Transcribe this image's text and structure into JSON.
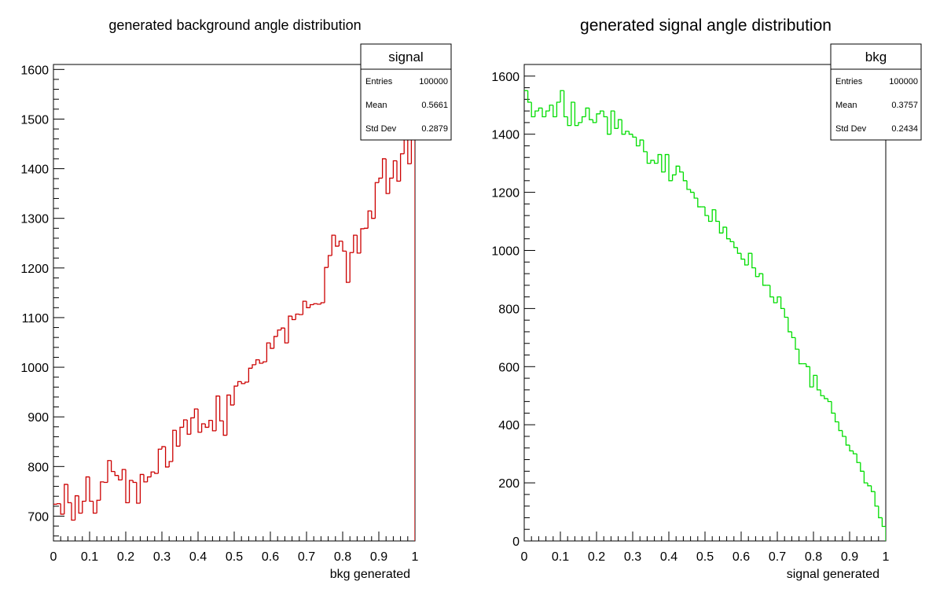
{
  "chart_data": [
    {
      "type": "histogram",
      "title": "generated background angle distribution",
      "xlabel": "bkg generated",
      "ylabel": "",
      "xlim": [
        0,
        1
      ],
      "ylim": [
        650,
        1610
      ],
      "color": "#cc0000",
      "bin_width": 0.01,
      "x_ticks": [
        "0",
        "0.1",
        "0.2",
        "0.3",
        "0.4",
        "0.5",
        "0.6",
        "0.7",
        "0.8",
        "0.9",
        "1"
      ],
      "y_ticks": [
        700,
        800,
        900,
        1000,
        1100,
        1200,
        1300,
        1400,
        1500,
        1600
      ],
      "stats": {
        "name": "signal",
        "rows": [
          {
            "label": "Entries",
            "value": "100000"
          },
          {
            "label": "Mean",
            "value": "0.5661"
          },
          {
            "label": "Std Dev",
            "value": "0.2879"
          }
        ]
      },
      "values": [
        724,
        725,
        704,
        764,
        727,
        692,
        741,
        706,
        730,
        779,
        730,
        706,
        732,
        769,
        768,
        812,
        790,
        782,
        773,
        794,
        727,
        772,
        768,
        726,
        784,
        769,
        779,
        789,
        786,
        835,
        840,
        799,
        810,
        873,
        841,
        879,
        894,
        865,
        898,
        916,
        869,
        886,
        879,
        893,
        872,
        942,
        892,
        863,
        944,
        924,
        962,
        971,
        967,
        970,
        998,
        1005,
        1015,
        1008,
        1011,
        1049,
        1038,
        1062,
        1075,
        1079,
        1049,
        1103,
        1096,
        1107,
        1106,
        1133,
        1120,
        1126,
        1128,
        1127,
        1130,
        1201,
        1225,
        1266,
        1244,
        1254,
        1234,
        1171,
        1231,
        1266,
        1230,
        1279,
        1280,
        1315,
        1300,
        1372,
        1381,
        1420,
        1350,
        1381,
        1416,
        1375,
        1430,
        1460,
        1410,
        1460
      ]
    },
    {
      "type": "histogram",
      "title": "generated signal angle distribution",
      "xlabel": "signal generated",
      "ylabel": "",
      "xlim": [
        0,
        1
      ],
      "ylim": [
        0,
        1640
      ],
      "color": "#00dd00",
      "bin_width": 0.01,
      "x_ticks": [
        "0",
        "0.1",
        "0.2",
        "0.3",
        "0.4",
        "0.5",
        "0.6",
        "0.7",
        "0.8",
        "0.9",
        "1"
      ],
      "y_ticks": [
        0,
        200,
        400,
        600,
        800,
        1000,
        1200,
        1400,
        1600
      ],
      "stats": {
        "name": "bkg",
        "rows": [
          {
            "label": "Entries",
            "value": "100000"
          },
          {
            "label": "Mean",
            "value": "0.3757"
          },
          {
            "label": "Std Dev",
            "value": "0.2434"
          }
        ]
      },
      "values": [
        1550,
        1510,
        1460,
        1480,
        1490,
        1460,
        1480,
        1500,
        1460,
        1510,
        1550,
        1460,
        1430,
        1510,
        1430,
        1440,
        1460,
        1490,
        1450,
        1440,
        1470,
        1480,
        1460,
        1400,
        1480,
        1420,
        1450,
        1400,
        1410,
        1400,
        1390,
        1360,
        1380,
        1340,
        1300,
        1310,
        1300,
        1330,
        1270,
        1330,
        1240,
        1260,
        1290,
        1270,
        1240,
        1210,
        1200,
        1180,
        1150,
        1150,
        1120,
        1100,
        1140,
        1100,
        1060,
        1080,
        1040,
        1030,
        1010,
        990,
        970,
        950,
        990,
        940,
        910,
        920,
        880,
        880,
        840,
        820,
        840,
        800,
        770,
        720,
        700,
        660,
        610,
        610,
        600,
        530,
        570,
        520,
        500,
        490,
        480,
        440,
        410,
        380,
        360,
        330,
        310,
        300,
        270,
        240,
        200,
        190,
        170,
        120,
        80,
        50
      ]
    }
  ]
}
